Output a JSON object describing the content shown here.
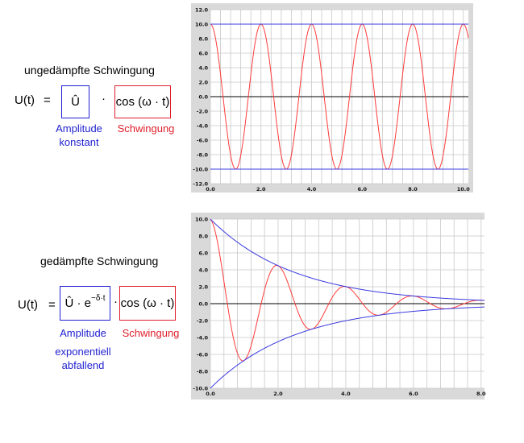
{
  "top": {
    "heading": "ungedämpfte Schwingung",
    "lhs": "U(t)",
    "equals": "=",
    "amp_box": "Û",
    "dot": "·",
    "osc_box": "cos (ω · t)",
    "cap_amp_1": "Amplitude",
    "cap_amp_2": "konstant",
    "cap_osc": "Schwingung"
  },
  "bottom": {
    "heading": "gedämpfte Schwingung",
    "lhs": "U(t)",
    "equals": "=",
    "amp_box_main": "Û · e",
    "amp_box_exp": "−δ·t",
    "dot": "·",
    "osc_box": "cos (ω · t)",
    "cap_amp_1": "Amplitude",
    "cap_amp_2": "exponentiell",
    "cap_amp_3": "abfallend",
    "cap_osc": "Schwingung"
  },
  "colors": {
    "signal": "#ff3b3b",
    "envelope": "#3a3ae0",
    "grid": "#c8c8c8",
    "zero_line": "#000000",
    "plot_bg": "#ffffff",
    "frame": "#d9d9d9"
  },
  "chart_data": [
    {
      "type": "line",
      "title": "",
      "xlabel": "",
      "ylabel": "",
      "xlim": [
        0,
        10.2
      ],
      "ylim": [
        -12,
        12
      ],
      "x_ticks": [
        "0.0",
        "2.0",
        "4.0",
        "6.0",
        "8.0",
        "10.0"
      ],
      "y_ticks": [
        "12.0",
        "10.0",
        "8.0",
        "6.0",
        "4.0",
        "2.0",
        "0.0",
        "-2.0",
        "-4.0",
        "-6.0",
        "-8.0",
        "-10.0",
        "-12.0"
      ],
      "grid": true,
      "series": [
        {
          "function": "10*cos(pi*t)",
          "x_range": [
            0,
            10.2
          ]
        },
        {
          "function": "10",
          "x_range": [
            0,
            10.2
          ]
        },
        {
          "function": "-10",
          "x_range": [
            0,
            10.2
          ]
        }
      ]
    },
    {
      "type": "line",
      "title": "",
      "xlabel": "",
      "ylabel": "",
      "xlim": [
        0,
        8.1
      ],
      "ylim": [
        -10,
        10
      ],
      "x_ticks": [
        "0.0",
        "2.0",
        "4.0",
        "6.0",
        "8.0"
      ],
      "y_ticks": [
        "10.0",
        "8.0",
        "6.0",
        "4.0",
        "2.0",
        "0.0",
        "-2.0",
        "-4.0",
        "-6.0",
        "-8.0",
        "-10.0"
      ],
      "grid": true,
      "series": [
        {
          "function": "10*exp(-0.4*t)*cos(pi*t)",
          "x_range": [
            0,
            8.1
          ]
        },
        {
          "function": "10*exp(-0.4*t)",
          "x_range": [
            0,
            8.1
          ]
        },
        {
          "function": "-10*exp(-0.4*t)",
          "x_range": [
            0,
            8.1
          ]
        }
      ]
    }
  ]
}
